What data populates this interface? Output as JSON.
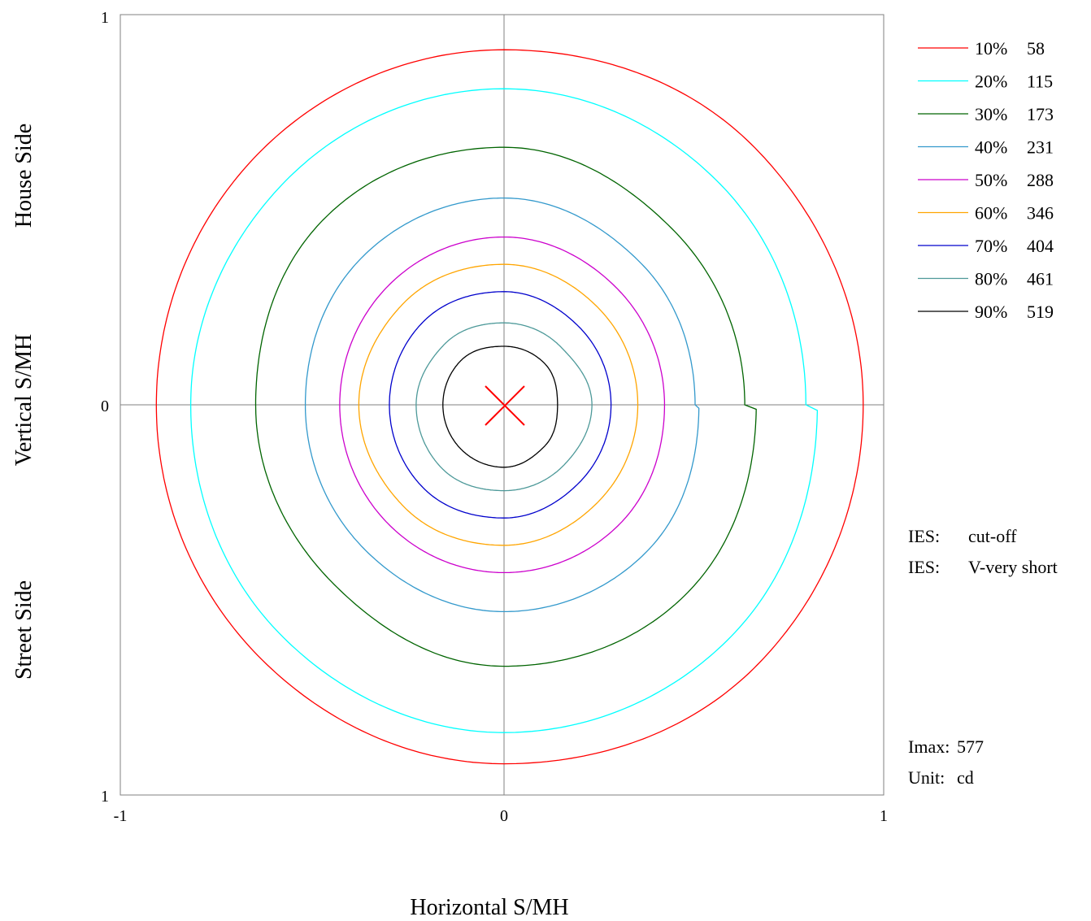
{
  "chart_data": {
    "type": "contour",
    "xlabel": "Horizontal S/MH",
    "ylabel_parts": [
      "House Side",
      "Vertical S/MH",
      "Street Side"
    ],
    "x_ticks": [
      "-1",
      "0",
      "1"
    ],
    "y_ticks": [
      "1",
      "0",
      "1"
    ],
    "xlim": [
      -1,
      1
    ],
    "ylim": [
      -1,
      1
    ],
    "grid": "center crosshair",
    "legend_position": "top-right",
    "max_marker": {
      "x": 0,
      "y": 0
    },
    "series": [
      {
        "percent": "10%",
        "value": "58",
        "color": "#ff0000",
        "r": [
          0.94,
          0.93,
          0.91,
          0.91,
          0.91,
          0.91,
          0.92,
          0.94,
          0.94
        ]
      },
      {
        "percent": "20%",
        "value": "115",
        "color": "#00ffff",
        "r": [
          0.79,
          0.8,
          0.81,
          0.81,
          0.82,
          0.83,
          0.84,
          0.84,
          0.82
        ]
      },
      {
        "percent": "30%",
        "value": "173",
        "color": "#006400",
        "r": [
          0.63,
          0.63,
          0.66,
          0.67,
          0.65,
          0.64,
          0.67,
          0.68,
          0.66
        ]
      },
      {
        "percent": "40%",
        "value": "231",
        "color": "#3399cc",
        "r": [
          0.5,
          0.51,
          0.53,
          0.53,
          0.52,
          0.52,
          0.53,
          0.53,
          0.51
        ]
      },
      {
        "percent": "50%",
        "value": "288",
        "color": "#cc00cc",
        "r": [
          0.42,
          0.42,
          0.43,
          0.43,
          0.43,
          0.43,
          0.43,
          0.43,
          0.42
        ]
      },
      {
        "percent": "60%",
        "value": "346",
        "color": "#ffa500",
        "r": [
          0.35,
          0.35,
          0.36,
          0.37,
          0.38,
          0.37,
          0.36,
          0.35,
          0.35
        ]
      },
      {
        "percent": "70%",
        "value": "404",
        "color": "#0000cc",
        "r": [
          0.28,
          0.28,
          0.29,
          0.3,
          0.3,
          0.3,
          0.29,
          0.28,
          0.28
        ]
      },
      {
        "percent": "80%",
        "value": "461",
        "color": "#4d9999",
        "r": [
          0.23,
          0.21,
          0.21,
          0.22,
          0.23,
          0.23,
          0.22,
          0.22,
          0.23
        ]
      },
      {
        "percent": "90%",
        "value": "519",
        "color": "#000000",
        "r": [
          0.14,
          0.15,
          0.15,
          0.16,
          0.16,
          0.16,
          0.16,
          0.15,
          0.14
        ]
      }
    ],
    "info": [
      {
        "label": "IES:",
        "value": "cut-off"
      },
      {
        "label": "IES:",
        "value": "V-very short"
      }
    ],
    "imax_label": "Imax:",
    "imax_value": "577",
    "unit_label": "Unit:",
    "unit_value": "cd"
  }
}
